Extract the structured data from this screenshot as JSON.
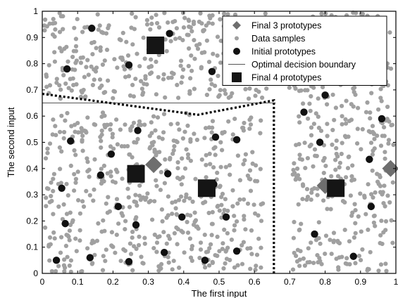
{
  "chart_data": {
    "type": "scatter",
    "title": "",
    "xlabel": "The first input",
    "ylabel": "The second input",
    "xlim": [
      0,
      1
    ],
    "ylim": [
      0,
      1
    ],
    "x_ticks": [
      "0",
      "0.1",
      "0.2",
      "0.3",
      "0.4",
      "0.5",
      "0.6",
      "0.7",
      "0.8",
      "0.9",
      "1"
    ],
    "y_ticks": [
      "0",
      "0.1",
      "0.2",
      "0.3",
      "0.4",
      "0.5",
      "0.6",
      "0.7",
      "0.8",
      "0.9",
      "1"
    ],
    "grid": false,
    "legend_position": "top-right",
    "colors": {
      "data_samples": "#a0a0a0",
      "initial_prototypes": "#111111",
      "final_3_prototypes": "#6e6e6e",
      "final_4_prototypes": "#151515",
      "boundary": "#000000"
    },
    "legend": [
      {
        "key": "final3",
        "label": "Final 3 prototypes",
        "marker": "diamond"
      },
      {
        "key": "samples",
        "label": "Data samples",
        "marker": "small-dot"
      },
      {
        "key": "initial",
        "label": "Initial prototypes",
        "marker": "circle"
      },
      {
        "key": "boundary",
        "label": "Optimal decision boundary",
        "marker": "line"
      },
      {
        "key": "final4",
        "label": "Final 4 prototypes",
        "marker": "square"
      }
    ],
    "series": [
      {
        "name": "Initial prototypes",
        "points": [
          [
            0.14,
            0.935
          ],
          [
            0.07,
            0.78
          ],
          [
            0.245,
            0.795
          ],
          [
            0.36,
            0.915
          ],
          [
            0.48,
            0.77
          ],
          [
            0.08,
            0.505
          ],
          [
            0.27,
            0.545
          ],
          [
            0.49,
            0.52
          ],
          [
            0.55,
            0.51
          ],
          [
            0.195,
            0.455
          ],
          [
            0.165,
            0.375
          ],
          [
            0.055,
            0.325
          ],
          [
            0.355,
            0.38
          ],
          [
            0.215,
            0.255
          ],
          [
            0.485,
            0.34
          ],
          [
            0.395,
            0.215
          ],
          [
            0.52,
            0.215
          ],
          [
            0.065,
            0.19
          ],
          [
            0.265,
            0.185
          ],
          [
            0.345,
            0.08
          ],
          [
            0.55,
            0.085
          ],
          [
            0.04,
            0.05
          ],
          [
            0.135,
            0.06
          ],
          [
            0.245,
            0.045
          ],
          [
            0.46,
            0.05
          ],
          [
            0.74,
            0.615
          ],
          [
            0.8,
            0.68
          ],
          [
            0.785,
            0.5
          ],
          [
            0.96,
            0.59
          ],
          [
            0.925,
            0.435
          ],
          [
            0.81,
            0.33
          ],
          [
            0.93,
            0.255
          ],
          [
            0.77,
            0.15
          ],
          [
            0.88,
            0.065
          ]
        ]
      },
      {
        "name": "Final 3 prototypes",
        "points": [
          [
            0.315,
            0.415
          ],
          [
            0.985,
            0.4
          ],
          [
            0.8,
            0.335
          ]
        ]
      },
      {
        "name": "Final 4 prototypes",
        "points": [
          [
            0.32,
            0.87
          ],
          [
            0.265,
            0.38
          ],
          [
            0.465,
            0.325
          ],
          [
            0.83,
            0.325
          ]
        ]
      }
    ],
    "boundary": {
      "name": "Optimal decision boundary",
      "horizontal_segment": [
        [
          0,
          0.65
        ],
        [
          0.66,
          0.65
        ]
      ],
      "vertical_segment": [
        [
          0.66,
          0
        ],
        [
          0.66,
          0.66
        ]
      ]
    },
    "dotted_boundary": {
      "points": [
        [
          0,
          0.685
        ],
        [
          0.44,
          0.605
        ],
        [
          0.655,
          0.66
        ],
        [
          0.655,
          0
        ]
      ]
    }
  }
}
